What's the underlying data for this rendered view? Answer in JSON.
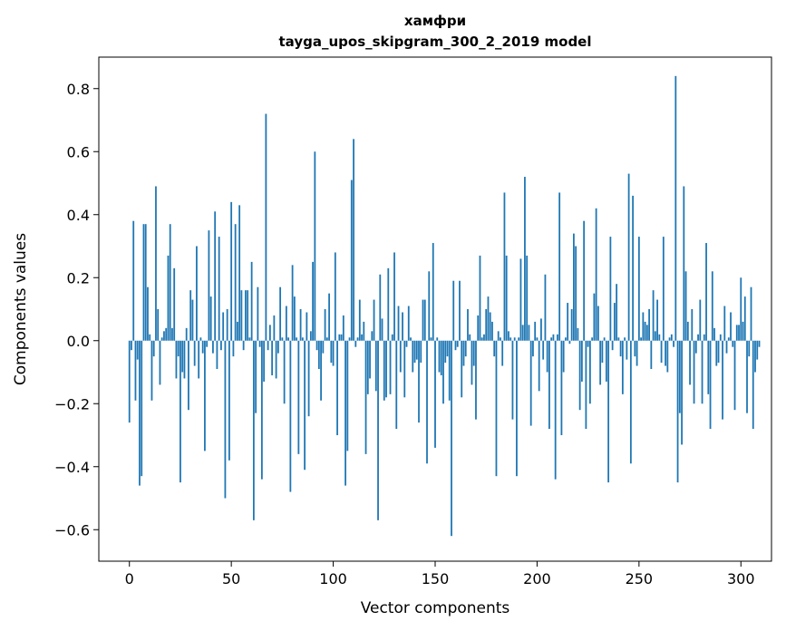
{
  "chart_data": {
    "type": "bar",
    "title": "хамфри",
    "subtitle": "tayga_upos_skipgram_300_2_2019 model",
    "xlabel": "Vector components",
    "ylabel": "Components values",
    "xlim": [
      -15,
      315
    ],
    "ylim": [
      -0.7,
      0.9
    ],
    "xticks": [
      0,
      50,
      100,
      150,
      200,
      250,
      300
    ],
    "yticks": [
      -0.6,
      -0.4,
      -0.2,
      0.0,
      0.2,
      0.4,
      0.6,
      0.8
    ],
    "xtick_labels": [
      "0",
      "50",
      "100",
      "150",
      "200",
      "250",
      "300"
    ],
    "ytick_labels": [
      "−0.6",
      "−0.4",
      "−0.2",
      "0.0",
      "0.2",
      "0.4",
      "0.6",
      "0.8"
    ],
    "bar_color": "#1f77b4",
    "grid": false,
    "values": [
      -0.26,
      -0.03,
      0.38,
      -0.19,
      -0.06,
      -0.46,
      -0.43,
      0.37,
      0.37,
      0.17,
      0.02,
      -0.19,
      -0.05,
      0.49,
      0.1,
      -0.14,
      0.01,
      0.03,
      0.04,
      0.27,
      0.37,
      0.04,
      0.23,
      -0.12,
      -0.05,
      -0.45,
      -0.1,
      -0.12,
      0.04,
      -0.22,
      0.16,
      0.13,
      -0.08,
      0.3,
      -0.12,
      0.01,
      -0.04,
      -0.35,
      -0.02,
      0.35,
      0.14,
      -0.04,
      0.41,
      -0.09,
      0.33,
      -0.03,
      0.09,
      -0.5,
      0.1,
      -0.38,
      0.44,
      -0.05,
      0.37,
      0.06,
      0.43,
      0.16,
      -0.03,
      0.16,
      0.16,
      0.01,
      0.25,
      -0.57,
      -0.23,
      0.17,
      -0.02,
      -0.44,
      -0.13,
      0.72,
      -0.03,
      0.05,
      -0.11,
      0.08,
      -0.12,
      -0.04,
      0.17,
      0.01,
      -0.2,
      0.11,
      0.01,
      -0.48,
      0.24,
      0.14,
      0.01,
      -0.36,
      0.1,
      0.01,
      -0.41,
      0.09,
      -0.24,
      0.03,
      0.25,
      0.6,
      -0.03,
      -0.09,
      -0.19,
      -0.04,
      0.1,
      0.01,
      0.15,
      -0.07,
      -0.08,
      0.28,
      -0.3,
      0.02,
      0.02,
      0.08,
      -0.46,
      -0.35,
      0.01,
      0.51,
      0.64,
      -0.02,
      0.01,
      0.13,
      0.02,
      0.06,
      -0.36,
      -0.17,
      -0.12,
      0.03,
      0.13,
      -0.16,
      -0.57,
      0.21,
      0.07,
      -0.19,
      -0.18,
      0.23,
      -0.17,
      0.02,
      0.28,
      -0.28,
      0.11,
      -0.1,
      0.09,
      -0.18,
      -0.02,
      0.11,
      0.01,
      -0.1,
      -0.07,
      -0.06,
      -0.26,
      -0.07,
      0.13,
      0.13,
      -0.39,
      0.22,
      0.01,
      0.31,
      -0.34,
      0.01,
      -0.1,
      -0.11,
      -0.2,
      -0.07,
      -0.05,
      -0.19,
      -0.62,
      0.19,
      -0.03,
      -0.02,
      0.19,
      -0.18,
      -0.08,
      -0.05,
      0.1,
      0.02,
      -0.14,
      -0.08,
      -0.25,
      0.08,
      0.27,
      0.01,
      0.02,
      0.1,
      0.14,
      0.09,
      0.06,
      -0.05,
      -0.43,
      0.03,
      0.01,
      -0.08,
      0.47,
      0.27,
      0.03,
      0.01,
      -0.25,
      0.01,
      -0.43,
      0.01,
      0.26,
      0.05,
      0.52,
      0.27,
      0.05,
      -0.27,
      -0.05,
      0.06,
      0.01,
      -0.16,
      0.07,
      -0.06,
      0.21,
      -0.1,
      -0.28,
      0.01,
      0.02,
      -0.44,
      0.02,
      0.47,
      -0.3,
      -0.1,
      0.01,
      0.12,
      -0.01,
      0.1,
      0.34,
      0.3,
      0.04,
      -0.22,
      -0.13,
      0.38,
      -0.28,
      -0.02,
      -0.2,
      0.01,
      0.15,
      0.42,
      0.11,
      -0.14,
      -0.07,
      0.01,
      -0.13,
      -0.45,
      0.33,
      -0.03,
      0.12,
      0.18,
      0.01,
      -0.05,
      -0.17,
      0.01,
      -0.06,
      0.53,
      -0.39,
      0.46,
      -0.05,
      -0.08,
      0.33,
      0.01,
      0.09,
      0.06,
      0.05,
      0.1,
      -0.09,
      0.16,
      0.03,
      0.13,
      0.02,
      -0.07,
      0.33,
      -0.08,
      -0.1,
      0.01,
      0.02,
      -0.02,
      0.84,
      -0.45,
      -0.23,
      -0.33,
      0.49,
      0.22,
      0.06,
      -0.14,
      0.1,
      -0.2,
      -0.04,
      0.02,
      0.13,
      -0.2,
      0.02,
      0.31,
      -0.17,
      -0.28,
      0.22,
      0.04,
      -0.08,
      -0.07,
      0.02,
      -0.25,
      0.11,
      -0.04,
      0.01,
      0.09,
      -0.02,
      -0.22,
      0.05,
      0.05,
      0.2,
      0.06,
      0.14,
      -0.23,
      -0.05,
      0.17,
      -0.28,
      -0.1,
      -0.06,
      -0.02
    ]
  }
}
